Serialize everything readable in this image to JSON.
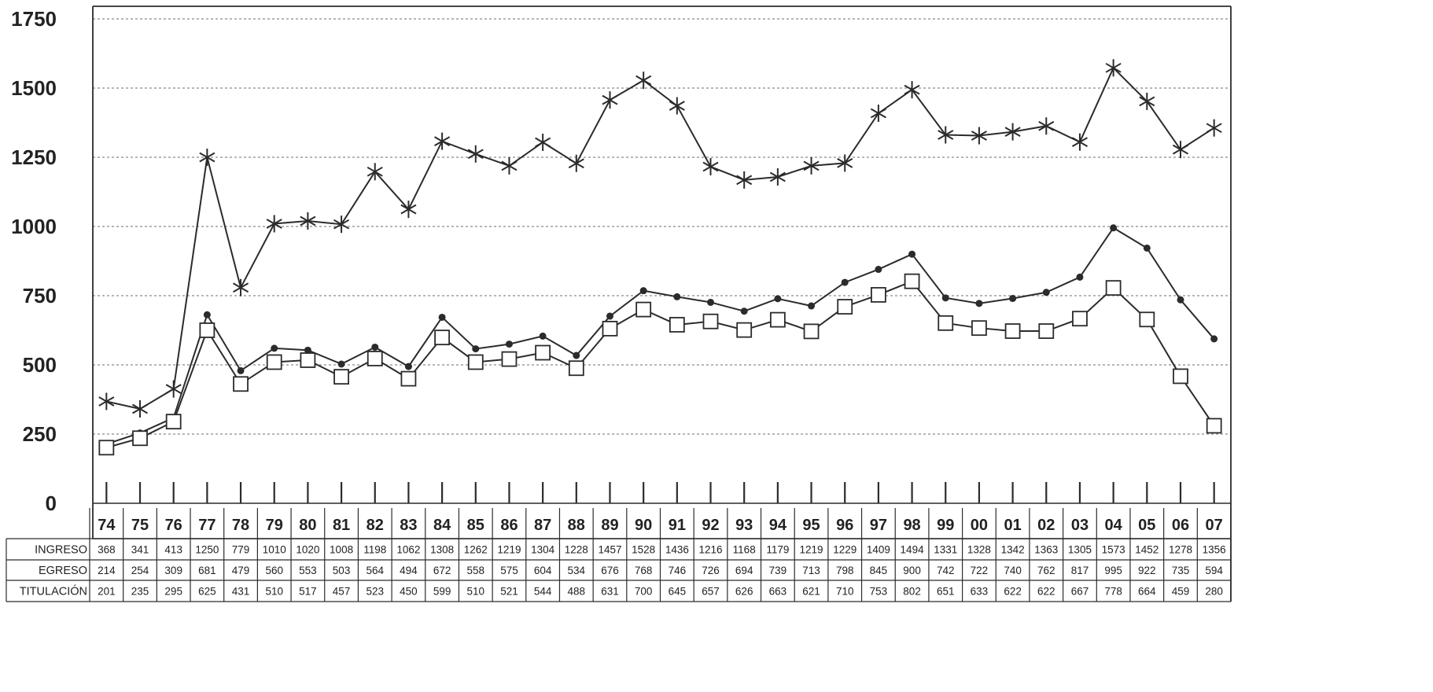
{
  "chart_data": {
    "type": "line",
    "title": "",
    "xlabel": "",
    "ylabel": "",
    "ylim": [
      0,
      1750
    ],
    "yticks": [
      0,
      250,
      500,
      750,
      1000,
      1250,
      1500,
      1750
    ],
    "grid": "horizontal dashed",
    "categories": [
      "74",
      "75",
      "76",
      "77",
      "78",
      "79",
      "80",
      "81",
      "82",
      "83",
      "84",
      "85",
      "86",
      "87",
      "88",
      "89",
      "90",
      "91",
      "92",
      "93",
      "94",
      "95",
      "96",
      "97",
      "98",
      "99",
      "00",
      "01",
      "02",
      "03",
      "04",
      "05",
      "06",
      "07"
    ],
    "series": [
      {
        "name": "INGRESO",
        "marker": "asterisk",
        "values": [
          368,
          341,
          413,
          1250,
          779,
          1010,
          1020,
          1008,
          1198,
          1062,
          1308,
          1262,
          1219,
          1304,
          1228,
          1457,
          1528,
          1436,
          1216,
          1168,
          1179,
          1219,
          1229,
          1409,
          1494,
          1331,
          1328,
          1342,
          1363,
          1305,
          1573,
          1452,
          1278,
          1356
        ]
      },
      {
        "name": "EGRESO",
        "marker": "dot",
        "values": [
          214,
          254,
          309,
          681,
          479,
          560,
          553,
          503,
          564,
          494,
          672,
          558,
          575,
          604,
          534,
          676,
          768,
          746,
          726,
          694,
          739,
          713,
          798,
          845,
          900,
          742,
          722,
          740,
          762,
          817,
          995,
          922,
          735,
          594
        ]
      },
      {
        "name": "TITULACIÓN",
        "marker": "square",
        "values": [
          201,
          235,
          295,
          625,
          431,
          510,
          517,
          457,
          523,
          450,
          599,
          510,
          521,
          544,
          488,
          631,
          700,
          645,
          657,
          626,
          663,
          621,
          710,
          753,
          802,
          651,
          633,
          622,
          622,
          667,
          778,
          664,
          459,
          280
        ]
      }
    ]
  },
  "colors": {
    "line": "#2b2b2b",
    "grid": "#8a8a8a",
    "background": "#ffffff"
  }
}
